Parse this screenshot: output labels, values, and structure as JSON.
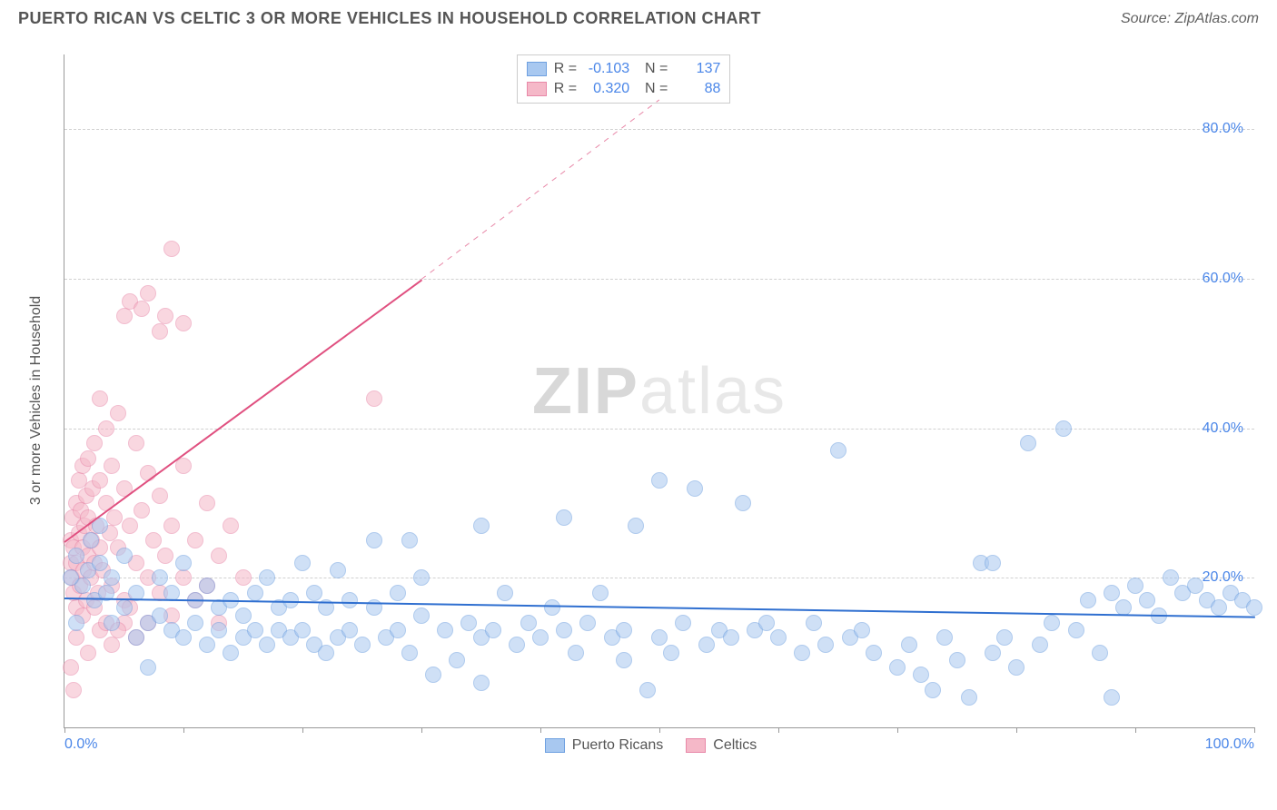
{
  "header": {
    "title": "PUERTO RICAN VS CELTIC 3 OR MORE VEHICLES IN HOUSEHOLD CORRELATION CHART",
    "source": "Source: ZipAtlas.com"
  },
  "chart": {
    "type": "scatter",
    "y_axis_label": "3 or more Vehicles in Household",
    "xlim": [
      0,
      100
    ],
    "ylim": [
      0,
      90
    ],
    "ytick_values": [
      20,
      40,
      60,
      80
    ],
    "ytick_labels": [
      "20.0%",
      "40.0%",
      "60.0%",
      "80.0%"
    ],
    "xtick_values": [
      0,
      10,
      20,
      30,
      40,
      50,
      60,
      70,
      80,
      90,
      100
    ],
    "xtick_label_left": "0.0%",
    "xtick_label_right": "100.0%",
    "grid_color": "#d0d0d0",
    "background_color": "#ffffff",
    "point_radius": 9,
    "point_opacity": 0.55,
    "series": {
      "puertoRicans": {
        "label": "Puerto Ricans",
        "color_fill": "#a8c8f0",
        "color_stroke": "#6ea0e0",
        "R": "-0.103",
        "N": "137",
        "trend": {
          "x1": 0,
          "y1": 17.5,
          "x2": 100,
          "y2": 15.0,
          "color": "#2f6fd0",
          "width": 2
        },
        "points": [
          [
            1,
            23
          ],
          [
            1.5,
            19
          ],
          [
            2,
            21
          ],
          [
            2.2,
            25
          ],
          [
            2.5,
            17
          ],
          [
            0.5,
            20
          ],
          [
            1,
            14
          ],
          [
            3,
            22
          ],
          [
            3,
            27
          ],
          [
            3.5,
            18
          ],
          [
            4,
            14
          ],
          [
            4,
            20
          ],
          [
            5,
            23
          ],
          [
            5,
            16
          ],
          [
            6,
            12
          ],
          [
            6,
            18
          ],
          [
            7,
            8
          ],
          [
            7,
            14
          ],
          [
            8,
            20
          ],
          [
            8,
            15
          ],
          [
            9,
            13
          ],
          [
            9,
            18
          ],
          [
            10,
            12
          ],
          [
            10,
            22
          ],
          [
            11,
            14
          ],
          [
            11,
            17
          ],
          [
            12,
            11
          ],
          [
            12,
            19
          ],
          [
            13,
            13
          ],
          [
            13,
            16
          ],
          [
            14,
            10
          ],
          [
            14,
            17
          ],
          [
            15,
            12
          ],
          [
            15,
            15
          ],
          [
            16,
            13
          ],
          [
            16,
            18
          ],
          [
            17,
            11
          ],
          [
            17,
            20
          ],
          [
            18,
            13
          ],
          [
            18,
            16
          ],
          [
            19,
            12
          ],
          [
            19,
            17
          ],
          [
            20,
            13
          ],
          [
            20,
            22
          ],
          [
            21,
            11
          ],
          [
            21,
            18
          ],
          [
            22,
            10
          ],
          [
            22,
            16
          ],
          [
            23,
            12
          ],
          [
            23,
            21
          ],
          [
            24,
            13
          ],
          [
            24,
            17
          ],
          [
            25,
            11
          ],
          [
            26,
            16
          ],
          [
            26,
            25
          ],
          [
            27,
            12
          ],
          [
            28,
            13
          ],
          [
            28,
            18
          ],
          [
            29,
            10
          ],
          [
            30,
            15
          ],
          [
            30,
            20
          ],
          [
            31,
            7
          ],
          [
            32,
            13
          ],
          [
            33,
            9
          ],
          [
            34,
            14
          ],
          [
            35,
            12
          ],
          [
            35,
            27
          ],
          [
            36,
            13
          ],
          [
            37,
            18
          ],
          [
            38,
            11
          ],
          [
            39,
            14
          ],
          [
            40,
            12
          ],
          [
            41,
            16
          ],
          [
            42,
            13
          ],
          [
            42,
            28
          ],
          [
            43,
            10
          ],
          [
            44,
            14
          ],
          [
            45,
            18
          ],
          [
            46,
            12
          ],
          [
            47,
            13
          ],
          [
            48,
            27
          ],
          [
            49,
            5
          ],
          [
            50,
            12
          ],
          [
            50,
            33
          ],
          [
            51,
            10
          ],
          [
            52,
            14
          ],
          [
            53,
            32
          ],
          [
            54,
            11
          ],
          [
            55,
            13
          ],
          [
            56,
            12
          ],
          [
            57,
            30
          ],
          [
            58,
            13
          ],
          [
            60,
            12
          ],
          [
            62,
            10
          ],
          [
            63,
            14
          ],
          [
            64,
            11
          ],
          [
            65,
            37
          ],
          [
            66,
            12
          ],
          [
            68,
            10
          ],
          [
            70,
            8
          ],
          [
            71,
            11
          ],
          [
            72,
            7
          ],
          [
            73,
            5
          ],
          [
            74,
            12
          ],
          [
            75,
            9
          ],
          [
            76,
            4
          ],
          [
            77,
            22
          ],
          [
            78,
            10
          ],
          [
            79,
            12
          ],
          [
            80,
            8
          ],
          [
            81,
            38
          ],
          [
            82,
            11
          ],
          [
            83,
            14
          ],
          [
            84,
            40
          ],
          [
            85,
            13
          ],
          [
            86,
            17
          ],
          [
            87,
            10
          ],
          [
            88,
            18
          ],
          [
            89,
            16
          ],
          [
            90,
            19
          ],
          [
            91,
            17
          ],
          [
            92,
            15
          ],
          [
            93,
            20
          ],
          [
            94,
            18
          ],
          [
            95,
            19
          ],
          [
            96,
            17
          ],
          [
            97,
            16
          ],
          [
            98,
            18
          ],
          [
            99,
            17
          ],
          [
            100,
            16
          ],
          [
            88,
            4
          ],
          [
            78,
            22
          ],
          [
            67,
            13
          ],
          [
            59,
            14
          ],
          [
            47,
            9
          ],
          [
            35,
            6
          ],
          [
            29,
            25
          ]
        ]
      },
      "celtics": {
        "label": "Celtics",
        "color_fill": "#f5b8c8",
        "color_stroke": "#e888a8",
        "R": "0.320",
        "N": "88",
        "trend_solid": {
          "x1": 0,
          "y1": 25,
          "x2": 30,
          "y2": 60,
          "color": "#e05080",
          "width": 2
        },
        "trend_dashed": {
          "x1": 30,
          "y1": 60,
          "x2": 50,
          "y2": 84,
          "color": "#e888a8",
          "width": 1
        },
        "points": [
          [
            0.5,
            22
          ],
          [
            0.5,
            25
          ],
          [
            0.6,
            20
          ],
          [
            0.7,
            28
          ],
          [
            0.8,
            18
          ],
          [
            0.8,
            24
          ],
          [
            1,
            30
          ],
          [
            1,
            16
          ],
          [
            1,
            22
          ],
          [
            1.2,
            26
          ],
          [
            1.2,
            33
          ],
          [
            1.3,
            19
          ],
          [
            1.4,
            29
          ],
          [
            1.5,
            24
          ],
          [
            1.5,
            35
          ],
          [
            1.6,
            21
          ],
          [
            1.7,
            27
          ],
          [
            1.8,
            17
          ],
          [
            1.8,
            31
          ],
          [
            2,
            23
          ],
          [
            2,
            28
          ],
          [
            2,
            36
          ],
          [
            2.2,
            20
          ],
          [
            2.3,
            25
          ],
          [
            2.4,
            32
          ],
          [
            2.5,
            22
          ],
          [
            2.5,
            38
          ],
          [
            2.7,
            27
          ],
          [
            2.8,
            18
          ],
          [
            3,
            24
          ],
          [
            3,
            33
          ],
          [
            3,
            44
          ],
          [
            3.2,
            21
          ],
          [
            3.5,
            30
          ],
          [
            3.5,
            40
          ],
          [
            3.8,
            26
          ],
          [
            4,
            19
          ],
          [
            4,
            35
          ],
          [
            4.2,
            28
          ],
          [
            4.5,
            24
          ],
          [
            4.5,
            42
          ],
          [
            5,
            17
          ],
          [
            5,
            32
          ],
          [
            5,
            55
          ],
          [
            5.5,
            27
          ],
          [
            5.5,
            57
          ],
          [
            6,
            22
          ],
          [
            6,
            38
          ],
          [
            6.5,
            29
          ],
          [
            6.5,
            56
          ],
          [
            7,
            20
          ],
          [
            7,
            34
          ],
          [
            7,
            58
          ],
          [
            7.5,
            25
          ],
          [
            8,
            18
          ],
          [
            8,
            31
          ],
          [
            8,
            53
          ],
          [
            8.5,
            23
          ],
          [
            8.5,
            55
          ],
          [
            9,
            27
          ],
          [
            9,
            64
          ],
          [
            10,
            20
          ],
          [
            10,
            35
          ],
          [
            10,
            54
          ],
          [
            11,
            25
          ],
          [
            12,
            19
          ],
          [
            12,
            30
          ],
          [
            13,
            23
          ],
          [
            14,
            27
          ],
          [
            15,
            20
          ],
          [
            1,
            12
          ],
          [
            2,
            10
          ],
          [
            3,
            13
          ],
          [
            4,
            11
          ],
          [
            5,
            14
          ],
          [
            6,
            12
          ],
          [
            0.5,
            8
          ],
          [
            1.5,
            15
          ],
          [
            2.5,
            16
          ],
          [
            3.5,
            14
          ],
          [
            4.5,
            13
          ],
          [
            5.5,
            16
          ],
          [
            7,
            14
          ],
          [
            9,
            15
          ],
          [
            11,
            17
          ],
          [
            13,
            14
          ],
          [
            26,
            44
          ],
          [
            0.8,
            5
          ]
        ]
      }
    },
    "watermark": "ZIPatlas"
  }
}
